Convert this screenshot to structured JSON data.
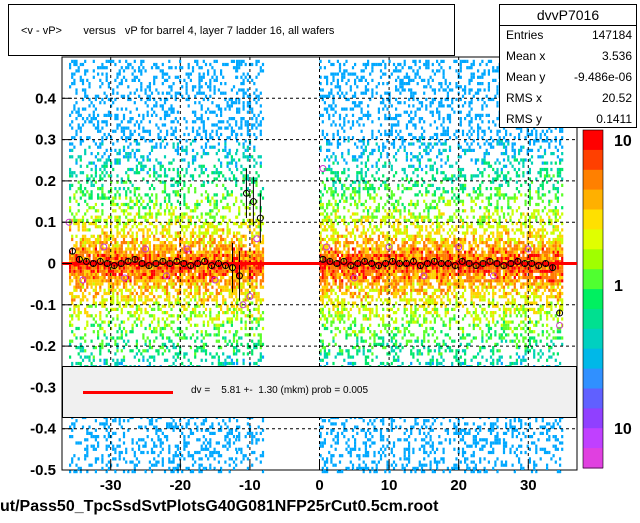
{
  "title": "<v - vP>       versus   vP for barrel 4, layer 7 ladder 16, all wafers",
  "stats": {
    "name": "dvvP7016",
    "rows": [
      {
        "key": "Entries",
        "value": "147184"
      },
      {
        "key": "Mean x",
        "value": "3.536"
      },
      {
        "key": "Mean y",
        "value": "-9.486e-06"
      },
      {
        "key": "RMS x",
        "value": "20.52"
      },
      {
        "key": "RMS y",
        "value": "0.1411"
      }
    ]
  },
  "fit_text": "dv =    5.81 +-  1.30 (mkm) prob = 0.005",
  "file_label": "ut/Pass50_TpcSsdSvtPlotsG40G081NFP25rCut0.5cm.root",
  "colors": {
    "fit_line": "#ff0000",
    "points": "#cc33cc"
  },
  "chart_data": {
    "type": "heatmap",
    "xlim": [
      -37,
      37
    ],
    "ylim": [
      -0.5,
      0.5
    ],
    "x_ticks": [
      "-30",
      "-20",
      "-10",
      "0",
      "10",
      "20",
      "30"
    ],
    "y_ticks": [
      "-0.5",
      "-0.4",
      "-0.3",
      "-0.2",
      "-0.1",
      "0",
      "0.1",
      "0.2",
      "0.3",
      "0.4"
    ],
    "z_scale": "log",
    "z_ticks": [
      "10",
      "1",
      "10"
    ],
    "grid": true,
    "coverage": [
      [
        -36,
        -12
      ],
      [
        -12,
        -8
      ],
      [
        0,
        35
      ]
    ],
    "fit": {
      "y": 0.0
    },
    "profile": {
      "x": [
        -35.5,
        -34.5,
        -33.5,
        -32.5,
        -31.5,
        -30.5,
        -29.5,
        -28.5,
        -27.5,
        -26.5,
        -25.5,
        -24.5,
        -23.5,
        -22.5,
        -21.5,
        -20.5,
        -19.5,
        -18.5,
        -17.5,
        -16.5,
        -15.5,
        -14.5,
        -13.5,
        -12.5,
        -11.5,
        -10.5,
        -9.5,
        -8.5,
        0.5,
        1.5,
        2.5,
        3.5,
        4.5,
        5.5,
        6.5,
        7.5,
        8.5,
        9.5,
        10.5,
        11.5,
        12.5,
        13.5,
        14.5,
        15.5,
        16.5,
        17.5,
        18.5,
        19.5,
        20.5,
        21.5,
        22.5,
        23.5,
        24.5,
        25.5,
        26.5,
        27.5,
        28.5,
        29.5,
        30.5,
        31.5,
        32.5,
        33.5,
        34.5
      ],
      "y": [
        0.03,
        0.01,
        0.005,
        0.0,
        0.005,
        0.0,
        -0.005,
        0.0,
        0.005,
        0.01,
        0.0,
        -0.005,
        0.0,
        0.005,
        0.0,
        0.005,
        0.0,
        -0.005,
        0.0,
        0.005,
        -0.005,
        0.0,
        -0.005,
        -0.01,
        -0.03,
        0.17,
        0.15,
        0.11,
        0.01,
        0.005,
        0.0,
        0.005,
        -0.005,
        0.0,
        0.005,
        0.0,
        -0.005,
        0.0,
        0.005,
        0.0,
        0.0,
        0.005,
        -0.005,
        0.0,
        0.005,
        0.0,
        0.0,
        -0.005,
        0.005,
        0.0,
        -0.005,
        0.0,
        0.005,
        0.0,
        -0.005,
        0.0,
        0.005,
        0.0,
        0.0,
        -0.005,
        0.0,
        -0.01,
        -0.12
      ],
      "outliers_x": [
        -36,
        -34,
        -31,
        -28,
        -25,
        -22,
        -19,
        -15,
        -11,
        -10,
        -9,
        0.5,
        1,
        5,
        10,
        15,
        20,
        25,
        30,
        34.5
      ],
      "outliers_y": [
        0.1,
        -0.04,
        0.04,
        -0.035,
        0.035,
        -0.03,
        0.035,
        -0.04,
        -0.1,
        -0.08,
        0.06,
        0.23,
        0.04,
        -0.035,
        0.04,
        -0.03,
        0.04,
        -0.03,
        0.035,
        -0.15
      ]
    }
  }
}
